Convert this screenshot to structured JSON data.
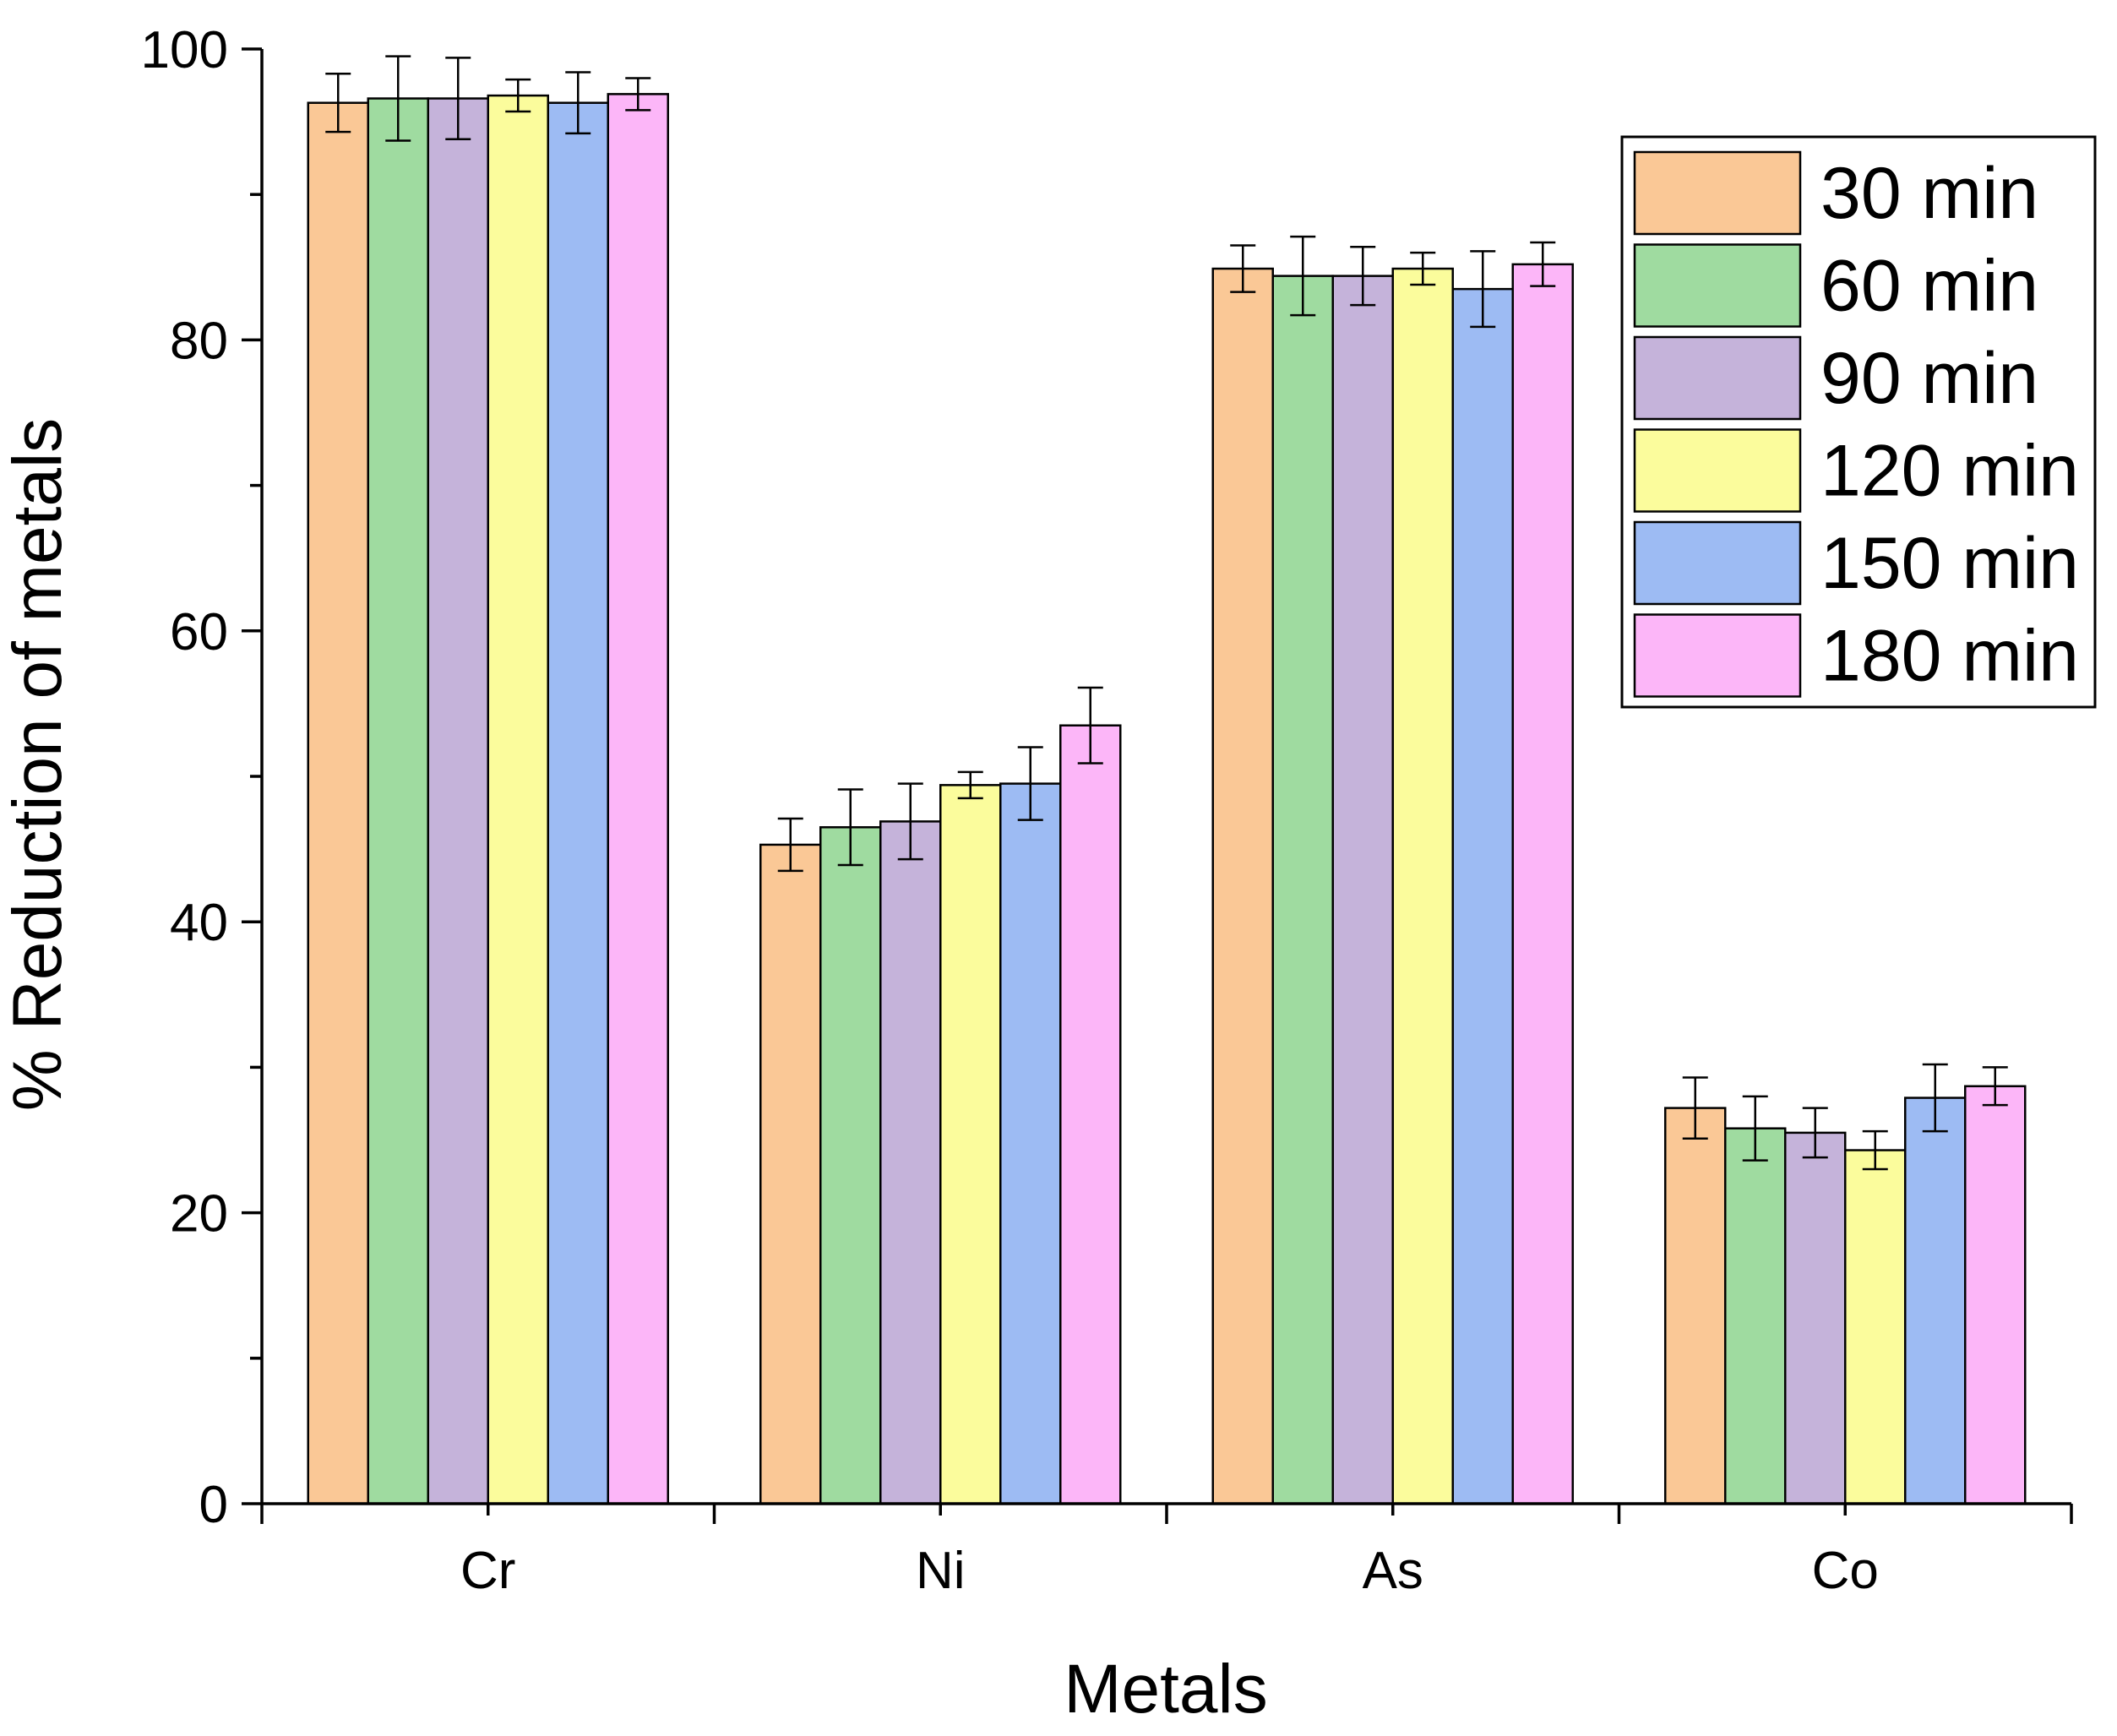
{
  "chart_data": {
    "type": "bar",
    "title": "",
    "xlabel": "Metals",
    "ylabel": "% Reduction of metals",
    "categories": [
      "Cr",
      "Ni",
      "As",
      "Co"
    ],
    "ylim": [
      0,
      100
    ],
    "yticks": [
      0,
      20,
      40,
      60,
      80,
      100
    ],
    "y_minor_step": 10,
    "legend_position": "top-right",
    "series": [
      {
        "name": "30 min",
        "color": "#FAC896",
        "values": [
          96.3,
          45.3,
          84.9,
          27.2
        ],
        "errors": [
          2.0,
          1.8,
          1.6,
          2.1
        ]
      },
      {
        "name": "60 min",
        "color": "#9FDBA0",
        "values": [
          96.6,
          46.5,
          84.4,
          25.8
        ],
        "errors": [
          2.9,
          2.6,
          2.7,
          2.2
        ]
      },
      {
        "name": "90 min",
        "color": "#C5B3DA",
        "values": [
          96.6,
          46.9,
          84.4,
          25.5
        ],
        "errors": [
          2.8,
          2.6,
          2.0,
          1.7
        ]
      },
      {
        "name": "120 min",
        "color": "#FBFC9C",
        "values": [
          96.8,
          49.4,
          84.9,
          24.3
        ],
        "errors": [
          1.1,
          0.9,
          1.1,
          1.3
        ]
      },
      {
        "name": "150 min",
        "color": "#9DBBF3",
        "values": [
          96.3,
          49.5,
          83.5,
          27.9
        ],
        "errors": [
          2.1,
          2.5,
          2.6,
          2.3
        ]
      },
      {
        "name": "180 min",
        "color": "#FCB6F8",
        "values": [
          96.9,
          53.5,
          85.2,
          28.7
        ],
        "errors": [
          1.1,
          2.6,
          1.5,
          1.3
        ]
      }
    ]
  }
}
